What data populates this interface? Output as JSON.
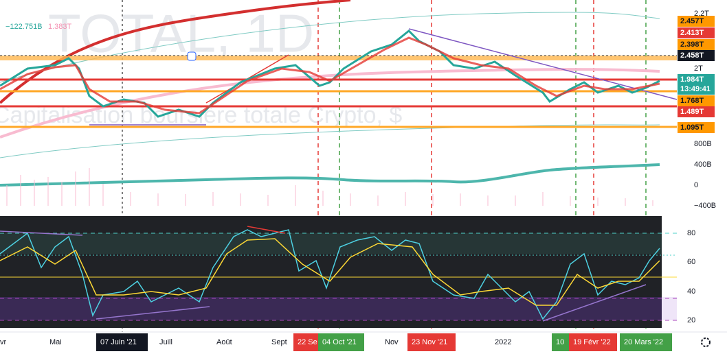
{
  "watermark": {
    "symbol": "TOTAL, 1D",
    "description": "Capitalisation boursière totale Crypto, $"
  },
  "legend": {
    "volume": "−122.751B",
    "volume_ma": "1.383T"
  },
  "price_axis": {
    "ticks": [
      "2.2T",
      "2T",
      "800B",
      "400B",
      "0",
      "−400B"
    ],
    "badges": {
      "orange_top": "2.457T",
      "red_top": "2.413T",
      "orange_mid": "2.398T",
      "crosshair": "2.458T",
      "last": "1.984T",
      "countdown": "13:49:41",
      "orange_low": "1.768T",
      "red_low": "1.489T",
      "orange_bottom": "1.095T"
    }
  },
  "rsi_axis": {
    "ticks": [
      "80",
      "60",
      "40",
      "20"
    ]
  },
  "time_axis": {
    "labels": [
      "vr",
      "Mai",
      "Juill",
      "Août",
      "Sept",
      "Nov",
      "2022"
    ],
    "markers": {
      "cursor": "07 Juin '21",
      "red1": "22 Se",
      "green1": "04 Oct '21",
      "red2": "23 Nov '21",
      "green2": "10",
      "red3": "19 Févr '22",
      "green3": "20 Mars '22"
    }
  }
}
